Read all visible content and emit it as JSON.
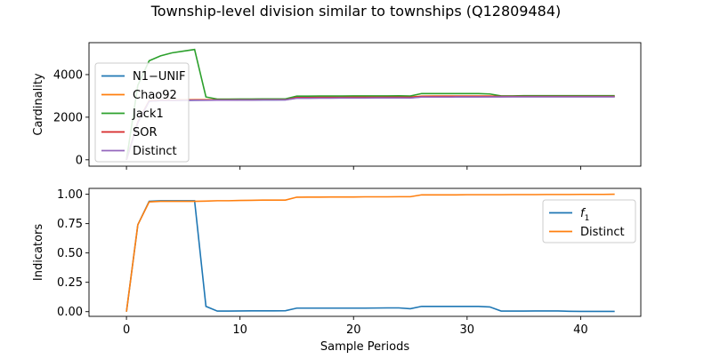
{
  "figure": {
    "title": "Township-level division similar to townships (Q12809484)"
  },
  "chart_data": [
    {
      "type": "line",
      "title": "",
      "xlabel": "",
      "ylabel": "Cardinality",
      "xlim": [
        -3.3,
        45.3
      ],
      "ylim": [
        -300,
        5500
      ],
      "yticks": [
        0,
        2000,
        4000
      ],
      "ytick_labels": [
        "0",
        "2000",
        "4000"
      ],
      "xticks": [
        0,
        10,
        20,
        30,
        40
      ],
      "show_xtick_labels": false,
      "legend_position": "upper-left",
      "series": [
        {
          "name": "N1−UNIF",
          "color": "#1f77b4",
          "x": [
            0,
            1,
            2,
            3,
            4,
            5,
            6,
            7,
            8,
            9,
            10,
            11,
            12,
            13,
            14,
            15,
            16,
            17,
            18,
            19,
            20,
            21,
            22,
            23,
            24,
            25,
            26,
            27,
            28,
            29,
            30,
            31,
            32,
            33,
            34,
            35,
            36,
            37,
            38,
            39,
            40,
            41,
            42,
            43
          ],
          "y": [
            0,
            1750,
            2750,
            2780,
            2780,
            2790,
            2795,
            2800,
            2800,
            2800,
            2805,
            2805,
            2810,
            2810,
            2815,
            2900,
            2900,
            2905,
            2905,
            2905,
            2910,
            2910,
            2910,
            2910,
            2915,
            2910,
            2950,
            2950,
            2955,
            2955,
            2955,
            2955,
            2960,
            2960,
            2960,
            2960,
            2960,
            2960,
            2960,
            2960,
            2960,
            2960,
            2960,
            2960
          ]
        },
        {
          "name": "Chao92",
          "color": "#ff7f0e",
          "x": [
            0,
            1,
            2,
            3,
            4,
            5,
            6,
            7,
            8,
            9,
            10,
            11,
            12,
            13,
            14,
            15,
            16,
            17,
            18,
            19,
            20,
            21,
            22,
            23,
            24,
            25,
            26,
            27,
            28,
            29,
            30,
            31,
            32,
            33,
            34,
            35,
            36,
            37,
            38,
            39,
            40,
            41,
            42,
            43
          ],
          "y": [
            0,
            1780,
            2780,
            2800,
            2810,
            2815,
            2820,
            2820,
            2820,
            2825,
            2825,
            2830,
            2830,
            2830,
            2830,
            2930,
            2930,
            2935,
            2935,
            2940,
            2940,
            2940,
            2945,
            2945,
            2950,
            2945,
            2990,
            2995,
            2995,
            2995,
            2995,
            2995,
            2995,
            2980,
            2980,
            2985,
            2985,
            2985,
            2985,
            2985,
            2985,
            2985,
            2985,
            2985
          ]
        },
        {
          "name": "Jack1",
          "color": "#2ca02c",
          "x": [
            0,
            1,
            2,
            3,
            4,
            5,
            6,
            7,
            8,
            9,
            10,
            11,
            12,
            13,
            14,
            15,
            16,
            17,
            18,
            19,
            20,
            21,
            22,
            23,
            24,
            25,
            26,
            27,
            28,
            29,
            30,
            31,
            32,
            33,
            34,
            35,
            36,
            37,
            38,
            39,
            40,
            41,
            42,
            43
          ],
          "y": [
            0,
            3500,
            4650,
            4880,
            5020,
            5100,
            5180,
            2950,
            2850,
            2850,
            2855,
            2855,
            2860,
            2860,
            2860,
            2990,
            2990,
            2995,
            2995,
            2995,
            3000,
            3000,
            3000,
            3000,
            3005,
            2995,
            3110,
            3110,
            3110,
            3110,
            3110,
            3110,
            3090,
            3000,
            3000,
            3010,
            3010,
            3010,
            3010,
            3010,
            3010,
            3010,
            3010,
            3010
          ]
        },
        {
          "name": "SOR",
          "color": "#d62728",
          "x": [
            0,
            1,
            2,
            3,
            4,
            5,
            6,
            7,
            8,
            9,
            10,
            11,
            12,
            13,
            14,
            15,
            16,
            17,
            18,
            19,
            20,
            21,
            22,
            23,
            24,
            25,
            26,
            27,
            28,
            29,
            30,
            31,
            32,
            33,
            34,
            35,
            36,
            37,
            38,
            39,
            40,
            41,
            42,
            43
          ],
          "y": [
            0,
            1770,
            2760,
            2790,
            2795,
            2800,
            2805,
            2805,
            2810,
            2810,
            2815,
            2815,
            2820,
            2820,
            2820,
            2920,
            2920,
            2925,
            2925,
            2925,
            2930,
            2930,
            2930,
            2935,
            2935,
            2930,
            2975,
            2975,
            2980,
            2980,
            2980,
            2980,
            2980,
            2975,
            2975,
            2975,
            2975,
            2975,
            2975,
            2975,
            2975,
            2975,
            2975,
            2975
          ]
        },
        {
          "name": "Distinct",
          "color": "#9467bd",
          "x": [
            0,
            1,
            2,
            3,
            4,
            5,
            6,
            7,
            8,
            9,
            10,
            11,
            12,
            13,
            14,
            15,
            16,
            17,
            18,
            19,
            20,
            21,
            22,
            23,
            24,
            25,
            26,
            27,
            28,
            29,
            30,
            31,
            32,
            33,
            34,
            35,
            36,
            37,
            38,
            39,
            40,
            41,
            42,
            43
          ],
          "y": [
            0,
            1750,
            2750,
            2780,
            2780,
            2790,
            2795,
            2795,
            2800,
            2800,
            2805,
            2805,
            2810,
            2810,
            2810,
            2890,
            2890,
            2895,
            2895,
            2900,
            2900,
            2900,
            2905,
            2905,
            2905,
            2900,
            2945,
            2945,
            2945,
            2950,
            2950,
            2950,
            2950,
            2950,
            2955,
            2955,
            2955,
            2955,
            2955,
            2955,
            2955,
            2955,
            2955,
            2955
          ]
        }
      ]
    },
    {
      "type": "line",
      "title": "",
      "xlabel": "Sample Periods",
      "ylabel": "Indicators",
      "xlim": [
        -3.3,
        45.3
      ],
      "ylim": [
        -0.04,
        1.05
      ],
      "yticks": [
        0.0,
        0.25,
        0.5,
        0.75,
        1.0
      ],
      "ytick_labels": [
        "0.00",
        "0.25",
        "0.50",
        "0.75",
        "1.00"
      ],
      "xticks": [
        0,
        10,
        20,
        30,
        40
      ],
      "xtick_labels": [
        "0",
        "10",
        "20",
        "30",
        "40"
      ],
      "legend_position": "upper-right",
      "series": [
        {
          "name": "f",
          "name_subscript": "1",
          "color": "#1f77b4",
          "x": [
            0,
            1,
            2,
            3,
            4,
            5,
            6,
            7,
            8,
            9,
            10,
            11,
            12,
            13,
            14,
            15,
            16,
            17,
            18,
            19,
            20,
            21,
            22,
            23,
            24,
            25,
            26,
            27,
            28,
            29,
            30,
            31,
            32,
            33,
            34,
            35,
            36,
            37,
            38,
            39,
            40,
            41,
            42,
            43
          ],
          "y": [
            0,
            0.74,
            0.94,
            0.945,
            0.945,
            0.945,
            0.945,
            0.045,
            0.005,
            0.005,
            0.006,
            0.007,
            0.007,
            0.007,
            0.008,
            0.03,
            0.03,
            0.03,
            0.03,
            0.03,
            0.03,
            0.03,
            0.031,
            0.032,
            0.032,
            0.025,
            0.045,
            0.045,
            0.045,
            0.045,
            0.045,
            0.045,
            0.04,
            0.005,
            0.005,
            0.005,
            0.006,
            0.006,
            0.006,
            0.003,
            0.002,
            0.002,
            0.002,
            0.002
          ]
        },
        {
          "name": "Distinct",
          "color": "#ff7f0e",
          "x": [
            0,
            1,
            2,
            3,
            4,
            5,
            6,
            7,
            8,
            9,
            10,
            11,
            12,
            13,
            14,
            15,
            16,
            17,
            18,
            19,
            20,
            21,
            22,
            23,
            24,
            25,
            26,
            27,
            28,
            29,
            30,
            31,
            32,
            33,
            34,
            35,
            36,
            37,
            38,
            39,
            40,
            41,
            42,
            43
          ],
          "y": [
            0,
            0.74,
            0.935,
            0.94,
            0.94,
            0.94,
            0.94,
            0.942,
            0.945,
            0.945,
            0.947,
            0.948,
            0.95,
            0.95,
            0.95,
            0.975,
            0.976,
            0.976,
            0.977,
            0.977,
            0.977,
            0.978,
            0.978,
            0.978,
            0.979,
            0.979,
            0.995,
            0.995,
            0.995,
            0.995,
            0.996,
            0.996,
            0.996,
            0.996,
            0.997,
            0.997,
            0.997,
            0.998,
            0.998,
            0.998,
            0.999,
            0.999,
            0.999,
            1.0
          ]
        }
      ]
    }
  ]
}
